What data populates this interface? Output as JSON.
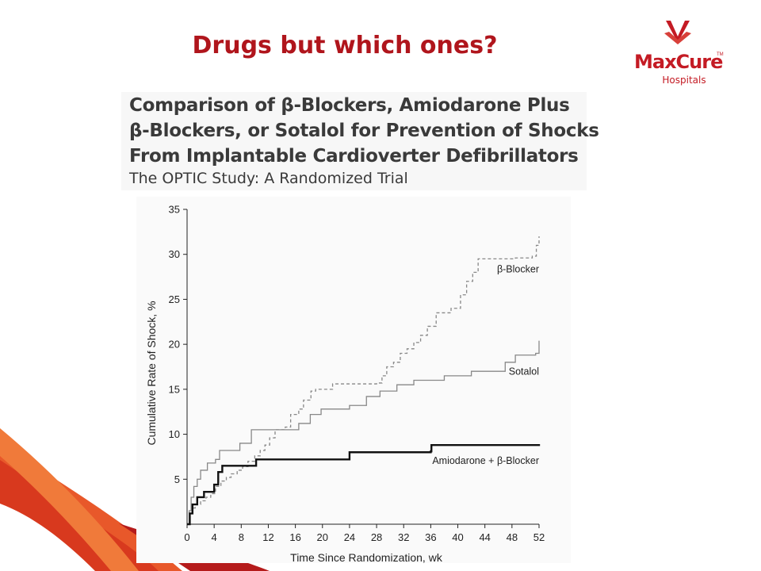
{
  "slide": {
    "title": "Drugs but which ones?",
    "accent_color": "#b0151c"
  },
  "logo": {
    "name": "MaxCure",
    "subtitle": "Hospitals",
    "tm": "TM",
    "color": "#c41b24"
  },
  "paper": {
    "title_lines": [
      "Comparison of β-Blockers, Amiodarone Plus",
      "β-Blockers, or Sotalol for Prevention of Shocks",
      "From Implantable Cardioverter Defibrillators"
    ],
    "subtitle": "The OPTIC Study: A Randomized Trial"
  },
  "chart_data": {
    "type": "line",
    "xlabel": "Time Since Randomization, wk",
    "ylabel": "Cumulative Rate of Shock, %",
    "xlim": [
      0,
      52
    ],
    "ylim": [
      0,
      35
    ],
    "xticks": [
      0,
      4,
      8,
      12,
      16,
      20,
      24,
      28,
      32,
      36,
      40,
      44,
      48,
      52
    ],
    "yticks": [
      5,
      10,
      15,
      20,
      25,
      30,
      35
    ],
    "step": true,
    "series": [
      {
        "name": "β-Blocker",
        "style": "dashed",
        "color": "#888888",
        "points": [
          [
            0,
            0
          ],
          [
            0.4,
            1.2
          ],
          [
            0.8,
            1.8
          ],
          [
            1.2,
            2.2
          ],
          [
            2,
            2.6
          ],
          [
            2.8,
            3.0
          ],
          [
            3.5,
            3.4
          ],
          [
            4.2,
            4.2
          ],
          [
            5,
            4.8
          ],
          [
            5.8,
            5.2
          ],
          [
            6.5,
            5.6
          ],
          [
            7.4,
            6.0
          ],
          [
            8.2,
            6.4
          ],
          [
            9,
            7.0
          ],
          [
            10,
            7.6
          ],
          [
            10.8,
            8.2
          ],
          [
            11.5,
            8.8
          ],
          [
            12.2,
            9.6
          ],
          [
            13,
            10.5
          ],
          [
            14.5,
            10.8
          ],
          [
            15.3,
            12.2
          ],
          [
            16.5,
            12.8
          ],
          [
            17.2,
            13.8
          ],
          [
            18.3,
            14.8
          ],
          [
            19,
            15.0
          ],
          [
            21.5,
            15.6
          ],
          [
            23.5,
            15.6
          ],
          [
            28,
            15.7
          ],
          [
            28.8,
            16.5
          ],
          [
            29.5,
            17.5
          ],
          [
            30.5,
            18.0
          ],
          [
            31.5,
            19.0
          ],
          [
            32.5,
            19.5
          ],
          [
            33.5,
            20.2
          ],
          [
            34.5,
            21.0
          ],
          [
            35.5,
            22.0
          ],
          [
            36.8,
            23.5
          ],
          [
            39,
            24.0
          ],
          [
            40.4,
            25.5
          ],
          [
            41.3,
            27.0
          ],
          [
            42.2,
            28.0
          ],
          [
            43,
            29.5
          ],
          [
            48.5,
            29.6
          ],
          [
            51,
            29.8
          ],
          [
            51.6,
            31.0
          ],
          [
            52,
            32.0
          ]
        ]
      },
      {
        "name": "Sotalol",
        "style": "solid-thin",
        "color": "#888888",
        "points": [
          [
            0,
            0
          ],
          [
            0.3,
            1.5
          ],
          [
            0.6,
            3.0
          ],
          [
            1,
            4.2
          ],
          [
            1.5,
            5.0
          ],
          [
            2,
            6.0
          ],
          [
            3,
            6.8
          ],
          [
            4.2,
            7.2
          ],
          [
            4.8,
            8.2
          ],
          [
            7.8,
            9.0
          ],
          [
            9.5,
            10.5
          ],
          [
            14.5,
            10.5
          ],
          [
            16.5,
            11.2
          ],
          [
            18.2,
            12.2
          ],
          [
            19.8,
            12.8
          ],
          [
            24,
            13.2
          ],
          [
            26.5,
            14.2
          ],
          [
            28.5,
            14.8
          ],
          [
            31,
            15.5
          ],
          [
            33.5,
            16.0
          ],
          [
            38,
            16.5
          ],
          [
            42,
            17.0
          ],
          [
            47,
            18.0
          ],
          [
            48.5,
            18.8
          ],
          [
            51.5,
            19.0
          ],
          [
            52,
            20.4
          ]
        ]
      },
      {
        "name": "Amiodarone + β-Blocker",
        "style": "solid-thick",
        "color": "#111111",
        "points": [
          [
            0,
            0
          ],
          [
            0.4,
            1.2
          ],
          [
            0.8,
            2.2
          ],
          [
            1.5,
            3.0
          ],
          [
            2.5,
            3.6
          ],
          [
            4,
            4.4
          ],
          [
            4.6,
            5.8
          ],
          [
            5.2,
            6.5
          ],
          [
            7.5,
            6.5
          ],
          [
            10.2,
            7.2
          ],
          [
            23.5,
            7.2
          ],
          [
            24,
            8.0
          ],
          [
            36,
            8.1
          ],
          [
            36.1,
            8.8
          ],
          [
            52,
            8.9
          ]
        ]
      }
    ]
  }
}
